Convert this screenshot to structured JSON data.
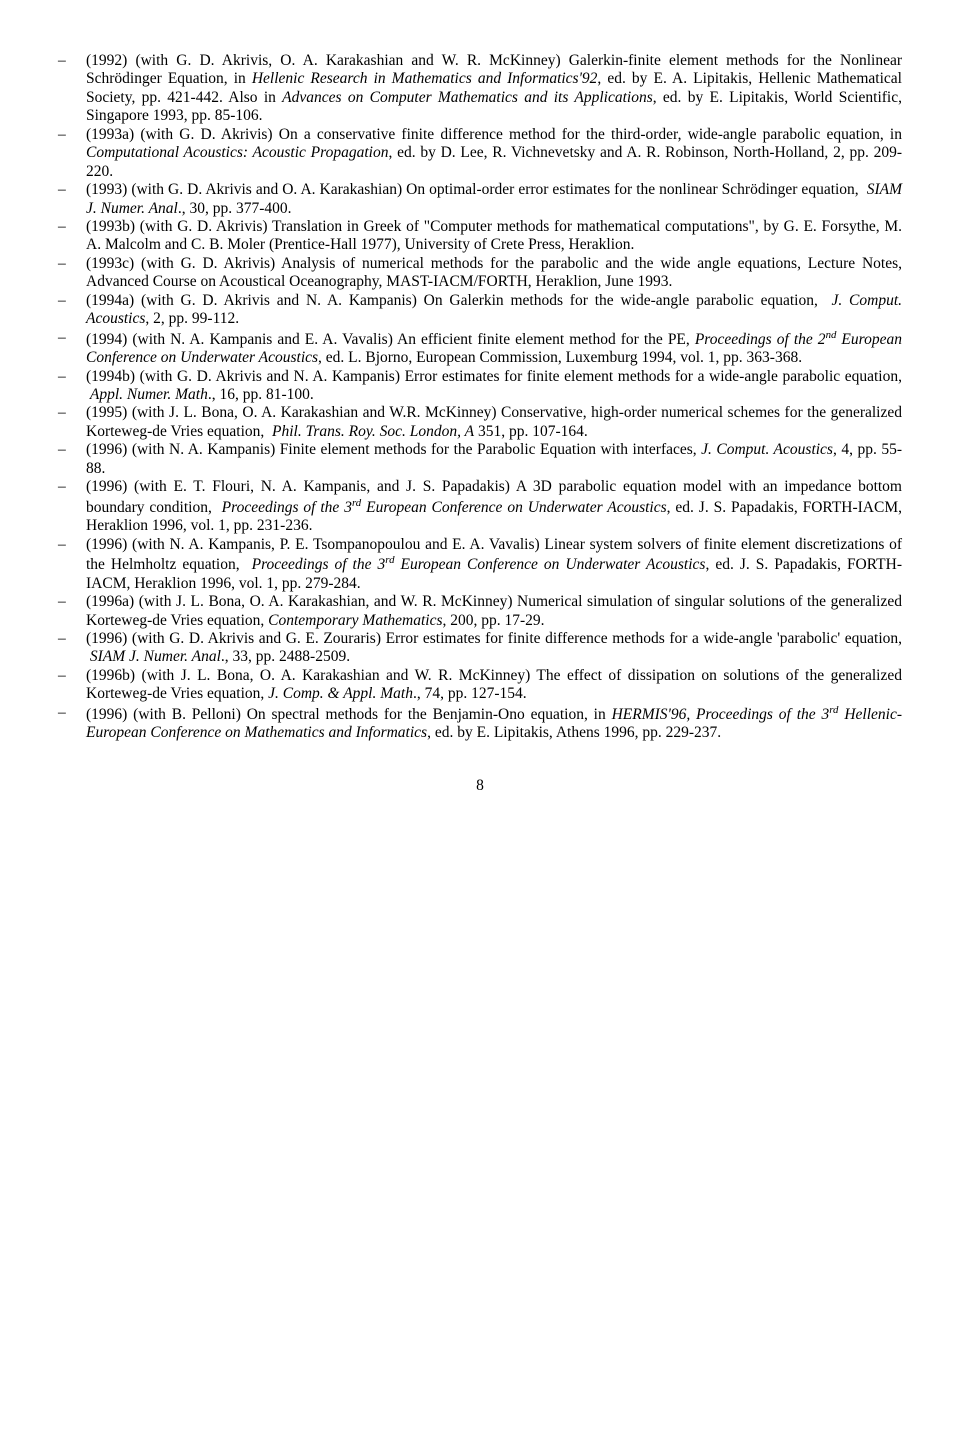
{
  "publications": [
    " (1992) (with G. D. Akrivis, O. A. Karakashian and W. R. McKinney) Galerkin-finite element methods for the Nonlinear Schrödinger Equation, in <i>Hellenic Research in Mathematics and Informatics'92</i>, ed. by E. A. Lipitakis, Hellenic Mathematical Society, pp. 421-442. Also in <i>Advances on Computer Mathematics and its Applications</i>, ed. by E. Lipitakis, World Scientific, Singapore 1993, pp. 85-106.",
    " (1993a) (with G. D. Akrivis) On a conservative finite difference method for the third-order, wide-angle parabolic equation, in <i>Computational Acoustics: Acoustic Propagation</i>, ed. by D. Lee, R. Vichnevetsky and A. R. Robinson, North-Holland, 2, pp. 209-220.",
    " (1993) (with G. D. Akrivis and O. A. Karakashian) On optimal-order error estimates for the nonlinear Schrödinger equation, &nbsp;<i>SIAM J. Numer. Anal</i>., 30, pp. 377-400.",
    " (1993b) (with G. D. Akrivis) Translation in Greek of \"Computer methods for mathematical computations\", by G. E. Forsythe, M. A. Malcolm and C. B. Moler (Prentice-Hall 1977), University of Crete Press, Heraklion.",
    " (1993c) (with G. D. Akrivis) Analysis of numerical methods for the parabolic and the wide angle equations, Lecture Notes, Advanced Course on Acoustical Oceanography, MAST-IACM/FORTH, Heraklion, June 1993.",
    " (1994a) (with G. D. Akrivis and N. A. Kampanis) On Galerkin methods for the wide-angle parabolic equation, &nbsp;<i>J. Comput. Acoustics</i>, 2, pp. 99-112.",
    " (1994) (with N. A. Kampanis and E. A. Vavalis) An efficient finite element method for the PE, <i>Proceedings of the 2<sup>nd</sup> European Conference on Underwater Acoustics</i>, ed. L. Bjorno, European Commission, Luxemburg 1994, vol. 1, pp. 363-368.",
    " (1994b) (with G. D. Akrivis and N. A. Kampanis) Error estimates for finite element methods for a wide-angle parabolic equation, &nbsp;<i>Appl. Numer. Math</i>., 16, pp. 81-100.",
    " (1995) (with J. L. Bona, O. A. Karakashian and W.R. McKinney) Conservative, high-order numerical schemes for the generalized Korteweg-de Vries equation, &nbsp;<i>Phil. Trans. Roy. Soc. London, A</i> 351, pp. 107-164.",
    " (1996) (with N. A. Kampanis) Finite element methods for the Parabolic Equation with interfaces, <i>J. Comput. Acoustics</i>, 4, pp. 55-88.",
    " (1996) (with E. T. Flouri, N. A. Kampanis, and J. S. Papadakis) A 3D parabolic equation model with an impedance bottom boundary condition, &nbsp;<i>Proceedings of the 3<sup>rd</sup> European Conference on Underwater Acoustics</i>, ed. J. S. Papadakis, FORTH-IACM, Heraklion 1996, vol. 1, pp. 231-236.",
    " (1996) (with N. A. Kampanis, P. E. Tsompanopoulou and E. A. Vavalis) Linear system solvers of finite element discretizations of the Helmholtz equation, &nbsp;<i>Proceedings of the 3<sup>rd</sup> European Conference on Underwater Acoustics</i>, ed. J. S. Papadakis, FORTH-IACM, Heraklion 1996, vol. 1, pp. 279-284.",
    " (1996a) (with J. L. Bona, O. A. Karakashian, and W. R. McKinney) Numerical simulation of singular solutions of the generalized Korteweg-de Vries equation, <i>Contemporary Mathematics</i>, 200, pp. 17-29.",
    " (1996) (with G. D. Akrivis and G. E. Zouraris) Error estimates for finite difference methods for a wide-angle 'parabolic' equation, &nbsp;<i>SIAM J. Numer. Anal</i>., 33, pp. 2488-2509.",
    " (1996b) (with J. L. Bona, O. A. Karakashian and W. R. McKinney) The effect of dissipation on solutions of the generalized Korteweg-de Vries equation, <i>J. Comp. &amp; Appl. Math</i>., 74, pp. 127-154.",
    " (1996) (with B. Pelloni) On spectral methods for the Benjamin-Ono equation, in <i>HERMIS'96, Proceedings of the 3<sup>rd</sup> Hellenic-European Conference on Mathematics and Informatics</i>, ed. by E. Lipitakis, Athens 1996, pp. 229-237."
  ],
  "page_number": "8"
}
